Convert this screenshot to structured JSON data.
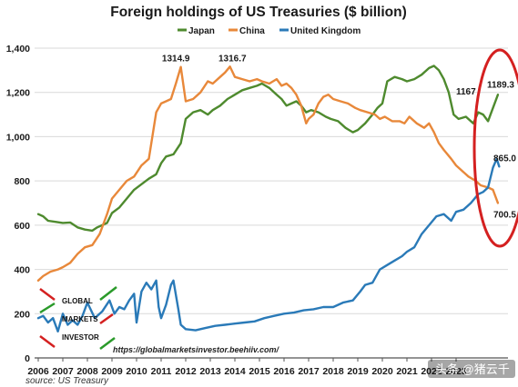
{
  "chart_data": {
    "type": "line",
    "title": "Foreign holdings of US Treasuries ($ billion)",
    "xlabel": "",
    "ylabel": "",
    "xlim": [
      2006.0,
      2024.8
    ],
    "ylim": [
      0,
      1400
    ],
    "x_ticks": [
      "2006",
      "2007",
      "2008",
      "2009",
      "2010",
      "2011",
      "2012",
      "2013",
      "2014",
      "2015",
      "2016",
      "2017",
      "2018",
      "2019",
      "2020",
      "2021",
      "2022",
      "2023"
    ],
    "y_ticks": [
      "0",
      "200",
      "400",
      "600",
      "800",
      "1,000",
      "1,200",
      "1,400"
    ],
    "grid": true,
    "legend_position": "top-center",
    "series": [
      {
        "name": "Japan",
        "color": "#4e8a2e",
        "points": [
          [
            2006.0,
            650
          ],
          [
            2006.2,
            640
          ],
          [
            2006.4,
            620
          ],
          [
            2006.7,
            615
          ],
          [
            2007.0,
            610
          ],
          [
            2007.3,
            612
          ],
          [
            2007.6,
            590
          ],
          [
            2007.9,
            580
          ],
          [
            2008.2,
            575
          ],
          [
            2008.4,
            590
          ],
          [
            2008.6,
            600
          ],
          [
            2008.8,
            610
          ],
          [
            2009.0,
            655
          ],
          [
            2009.3,
            680
          ],
          [
            2009.6,
            720
          ],
          [
            2009.9,
            760
          ],
          [
            2010.2,
            785
          ],
          [
            2010.5,
            810
          ],
          [
            2010.8,
            830
          ],
          [
            2011.0,
            880
          ],
          [
            2011.2,
            910
          ],
          [
            2011.5,
            920
          ],
          [
            2011.8,
            970
          ],
          [
            2012.0,
            1080
          ],
          [
            2012.3,
            1110
          ],
          [
            2012.6,
            1120
          ],
          [
            2012.9,
            1100
          ],
          [
            2013.1,
            1120
          ],
          [
            2013.4,
            1140
          ],
          [
            2013.7,
            1170
          ],
          [
            2014.0,
            1190
          ],
          [
            2014.3,
            1210
          ],
          [
            2014.6,
            1220
          ],
          [
            2014.9,
            1230
          ],
          [
            2015.1,
            1240
          ],
          [
            2015.4,
            1220
          ],
          [
            2015.7,
            1190
          ],
          [
            2015.9,
            1170
          ],
          [
            2016.1,
            1140
          ],
          [
            2016.3,
            1150
          ],
          [
            2016.5,
            1160
          ],
          [
            2016.7,
            1140
          ],
          [
            2016.9,
            1110
          ],
          [
            2017.1,
            1120
          ],
          [
            2017.4,
            1110
          ],
          [
            2017.7,
            1090
          ],
          [
            2017.9,
            1080
          ],
          [
            2018.2,
            1070
          ],
          [
            2018.5,
            1040
          ],
          [
            2018.8,
            1020
          ],
          [
            2019.0,
            1030
          ],
          [
            2019.3,
            1060
          ],
          [
            2019.6,
            1100
          ],
          [
            2019.8,
            1130
          ],
          [
            2020.0,
            1150
          ],
          [
            2020.2,
            1250
          ],
          [
            2020.5,
            1270
          ],
          [
            2020.8,
            1260
          ],
          [
            2021.0,
            1250
          ],
          [
            2021.3,
            1260
          ],
          [
            2021.6,
            1280
          ],
          [
            2021.9,
            1310
          ],
          [
            2022.1,
            1320
          ],
          [
            2022.3,
            1300
          ],
          [
            2022.5,
            1260
          ],
          [
            2022.7,
            1200
          ],
          [
            2022.9,
            1100
          ],
          [
            2023.1,
            1080
          ],
          [
            2023.4,
            1090
          ],
          [
            2023.7,
            1060
          ],
          [
            2023.9,
            1110
          ],
          [
            2024.1,
            1100
          ],
          [
            2024.3,
            1070
          ],
          [
            2024.5,
            1130
          ],
          [
            2024.7,
            1189.3
          ]
        ]
      },
      {
        "name": "China",
        "color": "#e8883a",
        "points": [
          [
            2006.0,
            350
          ],
          [
            2006.2,
            370
          ],
          [
            2006.5,
            390
          ],
          [
            2006.8,
            400
          ],
          [
            2007.0,
            410
          ],
          [
            2007.3,
            430
          ],
          [
            2007.6,
            470
          ],
          [
            2007.9,
            500
          ],
          [
            2008.2,
            510
          ],
          [
            2008.5,
            560
          ],
          [
            2008.8,
            650
          ],
          [
            2009.0,
            720
          ],
          [
            2009.3,
            760
          ],
          [
            2009.6,
            800
          ],
          [
            2009.9,
            820
          ],
          [
            2010.2,
            870
          ],
          [
            2010.5,
            900
          ],
          [
            2010.8,
            1110
          ],
          [
            2011.0,
            1150
          ],
          [
            2011.2,
            1160
          ],
          [
            2011.4,
            1170
          ],
          [
            2011.6,
            1240
          ],
          [
            2011.8,
            1314.9
          ],
          [
            2012.0,
            1160
          ],
          [
            2012.3,
            1170
          ],
          [
            2012.6,
            1200
          ],
          [
            2012.9,
            1250
          ],
          [
            2013.1,
            1240
          ],
          [
            2013.4,
            1270
          ],
          [
            2013.6,
            1290
          ],
          [
            2013.8,
            1316.7
          ],
          [
            2014.0,
            1270
          ],
          [
            2014.3,
            1260
          ],
          [
            2014.6,
            1250
          ],
          [
            2014.9,
            1260
          ],
          [
            2015.1,
            1250
          ],
          [
            2015.4,
            1240
          ],
          [
            2015.7,
            1260
          ],
          [
            2015.9,
            1230
          ],
          [
            2016.1,
            1240
          ],
          [
            2016.3,
            1220
          ],
          [
            2016.5,
            1190
          ],
          [
            2016.7,
            1140
          ],
          [
            2016.9,
            1060
          ],
          [
            2017.0,
            1080
          ],
          [
            2017.2,
            1100
          ],
          [
            2017.4,
            1150
          ],
          [
            2017.6,
            1180
          ],
          [
            2017.8,
            1190
          ],
          [
            2018.0,
            1170
          ],
          [
            2018.3,
            1160
          ],
          [
            2018.6,
            1150
          ],
          [
            2018.9,
            1130
          ],
          [
            2019.1,
            1120
          ],
          [
            2019.4,
            1110
          ],
          [
            2019.7,
            1100
          ],
          [
            2019.9,
            1080
          ],
          [
            2020.1,
            1090
          ],
          [
            2020.4,
            1070
          ],
          [
            2020.7,
            1070
          ],
          [
            2020.9,
            1060
          ],
          [
            2021.1,
            1090
          ],
          [
            2021.4,
            1060
          ],
          [
            2021.7,
            1040
          ],
          [
            2021.9,
            1060
          ],
          [
            2022.1,
            1020
          ],
          [
            2022.3,
            970
          ],
          [
            2022.5,
            940
          ],
          [
            2022.8,
            900
          ],
          [
            2023.0,
            870
          ],
          [
            2023.2,
            850
          ],
          [
            2023.5,
            820
          ],
          [
            2023.8,
            800
          ],
          [
            2024.0,
            780
          ],
          [
            2024.3,
            770
          ],
          [
            2024.5,
            760
          ],
          [
            2024.7,
            700.5
          ]
        ]
      },
      {
        "name": "United Kingdom",
        "color": "#2a7ab8",
        "points": [
          [
            2006.0,
            180
          ],
          [
            2006.2,
            190
          ],
          [
            2006.4,
            160
          ],
          [
            2006.6,
            180
          ],
          [
            2006.8,
            120
          ],
          [
            2007.0,
            200
          ],
          [
            2007.2,
            150
          ],
          [
            2007.4,
            170
          ],
          [
            2007.6,
            150
          ],
          [
            2007.8,
            190
          ],
          [
            2008.0,
            250
          ],
          [
            2008.3,
            180
          ],
          [
            2008.6,
            210
          ],
          [
            2008.9,
            260
          ],
          [
            2009.1,
            200
          ],
          [
            2009.3,
            230
          ],
          [
            2009.5,
            220
          ],
          [
            2009.7,
            260
          ],
          [
            2009.9,
            290
          ],
          [
            2010.0,
            160
          ],
          [
            2010.2,
            300
          ],
          [
            2010.4,
            340
          ],
          [
            2010.6,
            310
          ],
          [
            2010.8,
            350
          ],
          [
            2010.9,
            230
          ],
          [
            2011.0,
            180
          ],
          [
            2011.2,
            240
          ],
          [
            2011.4,
            330
          ],
          [
            2011.5,
            350
          ],
          [
            2011.7,
            220
          ],
          [
            2011.8,
            150
          ],
          [
            2012.0,
            130
          ],
          [
            2012.4,
            125
          ],
          [
            2012.8,
            135
          ],
          [
            2013.2,
            145
          ],
          [
            2013.6,
            150
          ],
          [
            2014.0,
            155
          ],
          [
            2014.4,
            160
          ],
          [
            2014.8,
            165
          ],
          [
            2015.2,
            180
          ],
          [
            2015.6,
            190
          ],
          [
            2016.0,
            200
          ],
          [
            2016.4,
            205
          ],
          [
            2016.8,
            215
          ],
          [
            2017.2,
            220
          ],
          [
            2017.6,
            230
          ],
          [
            2018.0,
            230
          ],
          [
            2018.4,
            250
          ],
          [
            2018.8,
            260
          ],
          [
            2019.1,
            300
          ],
          [
            2019.3,
            330
          ],
          [
            2019.6,
            340
          ],
          [
            2019.9,
            400
          ],
          [
            2020.2,
            420
          ],
          [
            2020.5,
            440
          ],
          [
            2020.8,
            460
          ],
          [
            2021.0,
            480
          ],
          [
            2021.3,
            500
          ],
          [
            2021.6,
            560
          ],
          [
            2021.9,
            600
          ],
          [
            2022.2,
            640
          ],
          [
            2022.5,
            650
          ],
          [
            2022.8,
            620
          ],
          [
            2023.0,
            660
          ],
          [
            2023.3,
            670
          ],
          [
            2023.6,
            700
          ],
          [
            2023.9,
            740
          ],
          [
            2024.1,
            750
          ],
          [
            2024.3,
            770
          ],
          [
            2024.5,
            860
          ],
          [
            2024.65,
            900
          ],
          [
            2024.75,
            865.0
          ]
        ]
      }
    ],
    "annotations": [
      {
        "text": "1314.9",
        "x": 2011.6,
        "y": 1314.9
      },
      {
        "text": "1316.7",
        "x": 2013.9,
        "y": 1316.7
      },
      {
        "text": "1167",
        "x": 2023.4,
        "y": 1167
      },
      {
        "text": "1189.3",
        "x": 2024.5,
        "y": 1189.3
      },
      {
        "text": "865.0",
        "x": 2024.9,
        "y": 865.0
      },
      {
        "text": "700.5",
        "x": 2024.9,
        "y": 700.5
      }
    ],
    "source": "source: US Treasury",
    "url": "https://globalmarketsinvestor.beehiiv.com/",
    "logo_text": [
      "GLOBAL",
      "MARKETS",
      "INVESTOR"
    ],
    "watermark": "头条 @猪云千"
  }
}
